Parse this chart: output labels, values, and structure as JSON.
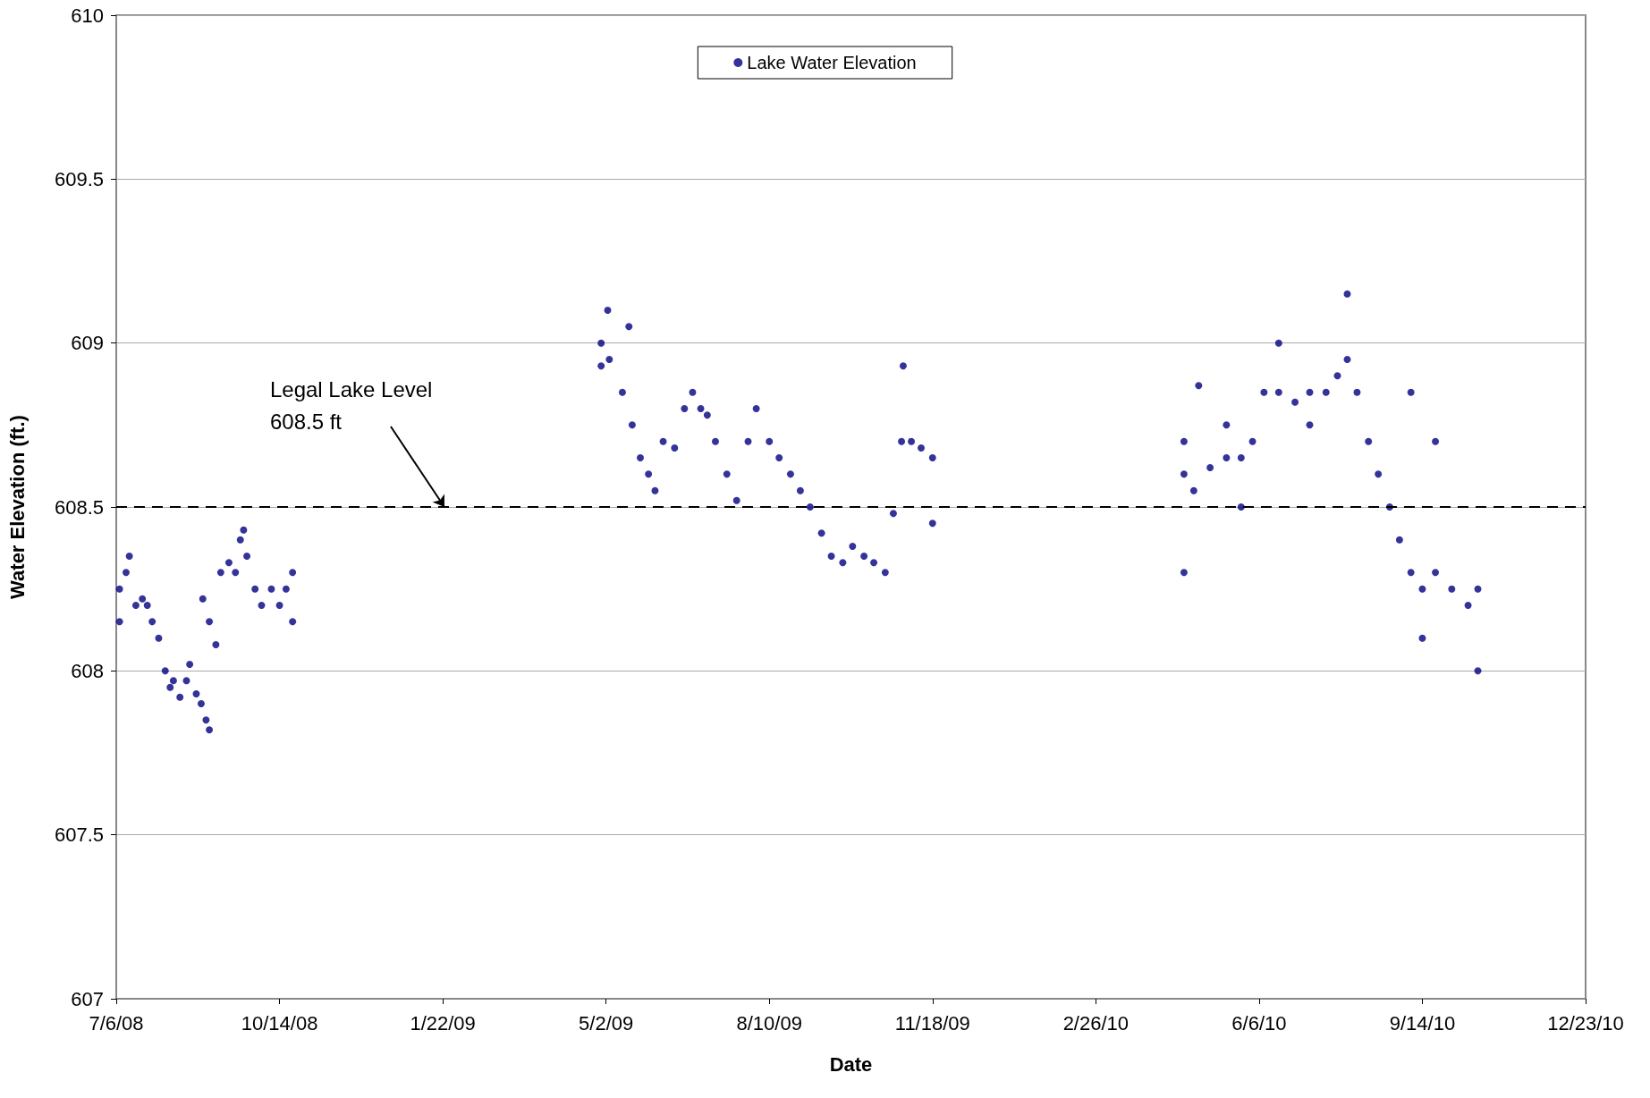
{
  "chart_data": {
    "type": "scatter",
    "xlabel": "Date",
    "ylabel": "Water Elevation (ft.)",
    "xlim": [
      "2008-07-06",
      "2010-12-23"
    ],
    "xticks": [
      {
        "value": "2008-07-06",
        "label": "7/6/08"
      },
      {
        "value": "2008-10-14",
        "label": "10/14/08"
      },
      {
        "value": "2009-01-22",
        "label": "1/22/09"
      },
      {
        "value": "2009-05-02",
        "label": "5/2/09"
      },
      {
        "value": "2009-08-10",
        "label": "8/10/09"
      },
      {
        "value": "2009-11-18",
        "label": "11/18/09"
      },
      {
        "value": "2010-02-26",
        "label": "2/26/10"
      },
      {
        "value": "2010-06-06",
        "label": "6/6/10"
      },
      {
        "value": "2010-09-14",
        "label": "9/14/10"
      },
      {
        "value": "2010-12-23",
        "label": "12/23/10"
      }
    ],
    "ylim": [
      607,
      610
    ],
    "yticks": [
      607,
      607.5,
      608,
      608.5,
      609,
      609.5,
      610
    ],
    "grid": "y",
    "legend": "top",
    "marker": "circle",
    "ref_lines": [
      {
        "axis": "y",
        "value": 608.5,
        "color": "#000000",
        "line_style": "dashed"
      }
    ],
    "annotations": [
      {
        "text": "Legal Lake Level\n608.5 ft",
        "x": "2009-01-23",
        "y": 608.5
      }
    ],
    "series": [
      {
        "name": "Lake Water Elevation",
        "color": "#000080",
        "x": [
          "2008-07-08",
          "2008-07-08",
          "2008-07-12",
          "2008-07-14",
          "2008-07-18",
          "2008-07-22",
          "2008-07-25",
          "2008-07-28",
          "2008-08-01",
          "2008-08-05",
          "2008-08-08",
          "2008-08-10",
          "2008-08-14",
          "2008-08-18",
          "2008-08-20",
          "2008-08-24",
          "2008-08-27",
          "2008-08-30",
          "2008-09-01",
          "2008-08-28",
          "2008-09-01",
          "2008-09-05",
          "2008-09-08",
          "2008-09-13",
          "2008-09-17",
          "2008-09-20",
          "2008-09-22",
          "2008-09-24",
          "2008-09-29",
          "2008-10-03",
          "2008-10-09",
          "2008-10-14",
          "2008-10-18",
          "2008-10-22",
          "2008-10-22",
          "2009-04-29",
          "2009-04-29",
          "2009-05-03",
          "2009-05-04",
          "2009-05-12",
          "2009-05-16",
          "2009-05-18",
          "2009-05-23",
          "2009-05-28",
          "2009-06-01",
          "2009-06-06",
          "2009-06-13",
          "2009-06-19",
          "2009-06-24",
          "2009-06-29",
          "2009-07-03",
          "2009-07-08",
          "2009-07-15",
          "2009-07-21",
          "2009-07-28",
          "2009-08-02",
          "2009-08-10",
          "2009-08-16",
          "2009-08-23",
          "2009-08-29",
          "2009-09-04",
          "2009-09-11",
          "2009-09-17",
          "2009-09-24",
          "2009-09-30",
          "2009-10-07",
          "2009-10-13",
          "2009-10-20",
          "2009-10-25",
          "2009-10-30",
          "2009-10-31",
          "2009-11-05",
          "2009-11-11",
          "2009-11-18",
          "2009-11-18",
          "2010-04-21",
          "2010-04-21",
          "2010-04-21",
          "2010-04-27",
          "2010-04-30",
          "2010-05-07",
          "2010-05-17",
          "2010-05-17",
          "2010-05-26",
          "2010-05-26",
          "2010-06-02",
          "2010-06-09",
          "2010-06-18",
          "2010-06-18",
          "2010-06-28",
          "2010-07-07",
          "2010-07-07",
          "2010-07-17",
          "2010-07-24",
          "2010-07-30",
          "2010-07-30",
          "2010-08-05",
          "2010-08-12",
          "2010-08-18",
          "2010-08-25",
          "2010-08-31",
          "2010-09-07",
          "2010-09-07",
          "2010-09-14",
          "2010-09-14",
          "2010-09-22",
          "2010-09-22",
          "2010-10-02",
          "2010-10-12",
          "2010-10-18",
          "2010-10-18"
        ],
        "values": [
          608.25,
          608.15,
          608.3,
          608.35,
          608.2,
          608.22,
          608.2,
          608.15,
          608.1,
          608.0,
          607.95,
          607.97,
          607.92,
          607.97,
          608.02,
          607.93,
          607.9,
          607.85,
          607.82,
          608.22,
          608.15,
          608.08,
          608.3,
          608.33,
          608.3,
          608.4,
          608.43,
          608.35,
          608.25,
          608.2,
          608.25,
          608.2,
          608.25,
          608.15,
          608.3,
          608.93,
          609.0,
          609.1,
          608.95,
          608.85,
          609.05,
          608.75,
          608.65,
          608.6,
          608.55,
          608.7,
          608.68,
          608.8,
          608.85,
          608.8,
          608.78,
          608.7,
          608.6,
          608.52,
          608.7,
          608.8,
          608.7,
          608.65,
          608.6,
          608.55,
          608.5,
          608.42,
          608.35,
          608.33,
          608.38,
          608.35,
          608.33,
          608.3,
          608.48,
          608.7,
          608.93,
          608.7,
          608.68,
          608.65,
          608.45,
          608.6,
          608.7,
          608.3,
          608.55,
          608.87,
          608.62,
          608.65,
          608.75,
          608.65,
          608.5,
          608.7,
          608.85,
          608.85,
          609.0,
          608.82,
          608.85,
          608.75,
          608.85,
          608.9,
          608.95,
          609.15,
          608.85,
          608.7,
          608.6,
          608.5,
          608.4,
          608.3,
          608.85,
          608.25,
          608.1,
          608.3,
          608.7,
          608.25,
          608.2,
          608.25,
          608.0
        ]
      }
    ]
  }
}
